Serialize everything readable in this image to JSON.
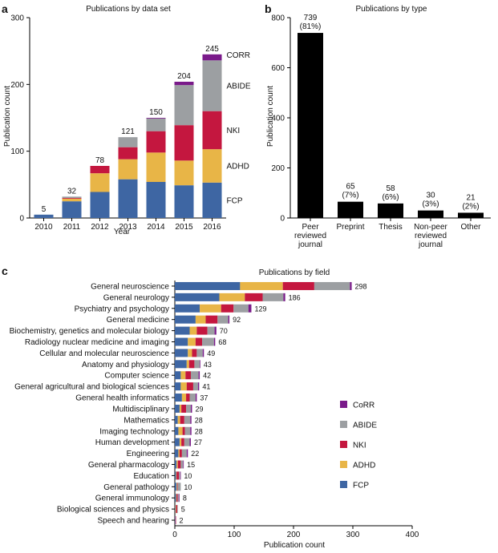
{
  "chart_data": [
    {
      "panel": "a",
      "type": "bar",
      "stacked": true,
      "title": "Publications by data set",
      "xlabel": "Year",
      "ylabel": "Publication count",
      "ylim": [
        0,
        300
      ],
      "yticks": [
        0,
        100,
        200,
        300
      ],
      "categories": [
        "2010",
        "2011",
        "2012",
        "2013",
        "2014",
        "2015",
        "2016"
      ],
      "totals": [
        5,
        32,
        78,
        121,
        150,
        204,
        245
      ],
      "series": [
        {
          "name": "FCP",
          "color": "#3e66a3",
          "values": [
            5,
            25,
            39,
            58,
            54,
            49,
            53
          ]
        },
        {
          "name": "ADHD",
          "color": "#e8b547",
          "values": [
            0,
            4,
            28,
            30,
            44,
            37,
            50
          ]
        },
        {
          "name": "NKI",
          "color": "#c4173f",
          "values": [
            0,
            1,
            11,
            18,
            32,
            53,
            57
          ]
        },
        {
          "name": "ABIDE",
          "color": "#9c9fa2",
          "values": [
            0,
            2,
            0,
            15,
            19,
            60,
            76
          ]
        },
        {
          "name": "CORR",
          "color": "#7a1a8a",
          "values": [
            0,
            0,
            0,
            0,
            1,
            5,
            9
          ]
        }
      ],
      "series_labels": [
        "CORR",
        "ABIDE",
        "NKI",
        "ADHD",
        "FCP"
      ]
    },
    {
      "panel": "b",
      "type": "bar",
      "title": "Publications by type",
      "xlabel": "",
      "ylabel": "Publication count",
      "ylim": [
        0,
        800
      ],
      "yticks": [
        0,
        200,
        400,
        600,
        800
      ],
      "categories": [
        [
          "Peer",
          "reviewed",
          "journal"
        ],
        [
          "Preprint"
        ],
        [
          "Thesis"
        ],
        [
          "Non-peer",
          "reviewed",
          "journal"
        ],
        [
          "Other"
        ]
      ],
      "values": [
        739,
        65,
        58,
        30,
        21
      ],
      "value_labels": [
        "739",
        "65",
        "58",
        "30",
        "21"
      ],
      "percent_labels": [
        "(81%)",
        "(7%)",
        "(6%)",
        "(3%)",
        "(2%)"
      ],
      "bar_color": "#000000"
    },
    {
      "panel": "c",
      "type": "bar",
      "orientation": "horizontal",
      "stacked": true,
      "title": "Publications by field",
      "xlabel": "Publication count",
      "xlim": [
        0,
        400
      ],
      "xticks": [
        0,
        100,
        200,
        300,
        400
      ],
      "categories": [
        "General neuroscience",
        "General neurology",
        "Psychiatry and psychology",
        "General medicine",
        "Biochemistry, genetics and molecular biology",
        "Radiology nuclear medicine and imaging",
        "Cellular and molecular neuroscience",
        "Anatomy and physiology",
        "Computer science",
        "General agricultural and biological sciences",
        "General health informatics",
        "Multidisciplinary",
        "Mathematics",
        "Imaging technology",
        "Human development",
        "Engineering",
        "General pharmacology",
        "Education",
        "General pathology",
        "General immunology",
        "Biological sciences and physics",
        "Speech and hearing"
      ],
      "totals": [
        298,
        186,
        129,
        92,
        70,
        68,
        49,
        43,
        42,
        41,
        37,
        29,
        28,
        28,
        27,
        22,
        15,
        10,
        10,
        8,
        5,
        2
      ],
      "series": [
        {
          "name": "FCP",
          "color": "#3e66a3",
          "values": [
            110,
            75,
            42,
            35,
            25,
            22,
            22,
            20,
            10,
            10,
            12,
            8,
            5,
            6,
            8,
            6,
            3,
            2,
            3,
            2,
            1,
            1
          ]
        },
        {
          "name": "ADHD",
          "color": "#e8b547",
          "values": [
            72,
            43,
            36,
            17,
            12,
            13,
            7,
            4,
            8,
            10,
            7,
            3,
            4,
            7,
            3,
            2,
            2,
            1,
            1,
            1,
            1,
            0
          ]
        },
        {
          "name": "NKI",
          "color": "#c4173f",
          "values": [
            53,
            30,
            21,
            20,
            18,
            11,
            8,
            9,
            9,
            11,
            6,
            8,
            7,
            4,
            5,
            4,
            5,
            4,
            1,
            2,
            2,
            1
          ]
        },
        {
          "name": "ABIDE",
          "color": "#9c9fa2",
          "values": [
            60,
            35,
            25,
            18,
            12,
            20,
            10,
            9,
            13,
            8,
            10,
            8,
            10,
            9,
            9,
            8,
            4,
            2,
            5,
            2,
            1,
            0
          ]
        },
        {
          "name": "CoRR",
          "color": "#7a1a8a",
          "values": [
            3,
            3,
            5,
            2,
            3,
            2,
            2,
            1,
            2,
            2,
            2,
            2,
            2,
            2,
            2,
            2,
            1,
            1,
            0,
            1,
            0,
            0
          ]
        }
      ],
      "legend": [
        "CoRR",
        "ABIDE",
        "NKI",
        "ADHD",
        "FCP"
      ],
      "legend_position": "lower-right"
    }
  ]
}
